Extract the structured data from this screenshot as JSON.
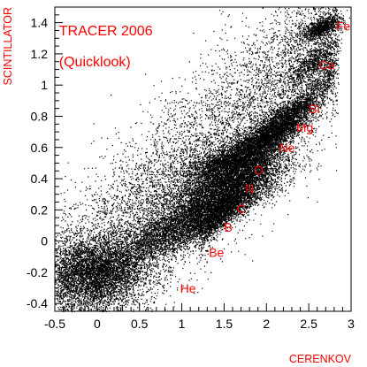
{
  "chart_data": {
    "type": "scatter",
    "title": "",
    "xlabel": "CERENKOV",
    "ylabel": "SCINTILLATOR",
    "xlim": [
      -0.5,
      3
    ],
    "ylim": [
      -0.45,
      1.5
    ],
    "x_ticks": [
      "-0.5",
      "0",
      "0.5",
      "1",
      "1.5",
      "2",
      "2.5",
      "3"
    ],
    "y_ticks": [
      "-0.4",
      "-0.2",
      "0",
      "0.2",
      "0.4",
      "0.6",
      "0.8",
      "1",
      "1.2",
      "1.4"
    ],
    "grid": false,
    "legend": "none",
    "point_color": "#000000",
    "label_color": "#ff0000",
    "annotations": [
      {
        "text": "TRACER 2006",
        "x": -0.45,
        "y": 1.32
      },
      {
        "text": "(Quicklook)",
        "x": -0.45,
        "y": 1.12
      },
      {
        "text": "Fe",
        "x": 2.82,
        "y": 1.35
      },
      {
        "text": "Ca",
        "x": 2.62,
        "y": 1.1
      },
      {
        "text": "Si",
        "x": 2.5,
        "y": 0.82
      },
      {
        "text": "Mg",
        "x": 2.35,
        "y": 0.7
      },
      {
        "text": "Ne",
        "x": 2.15,
        "y": 0.57
      },
      {
        "text": "O",
        "x": 1.85,
        "y": 0.43
      },
      {
        "text": "N",
        "x": 1.75,
        "y": 0.31
      },
      {
        "text": "C",
        "x": 1.65,
        "y": 0.18
      },
      {
        "text": "B",
        "x": 1.5,
        "y": 0.06
      },
      {
        "text": "Be",
        "x": 1.32,
        "y": -0.1
      },
      {
        "text": "He",
        "x": 0.98,
        "y": -0.33
      }
    ],
    "clusters": [
      {
        "element": "He",
        "x": -0.05,
        "y": -0.2
      },
      {
        "element": "Be",
        "x": 0.75,
        "y": 0.1
      },
      {
        "element": "B",
        "x": 1.3,
        "y": 0.1
      },
      {
        "element": "C",
        "x": 1.5,
        "y": 0.25
      },
      {
        "element": "N",
        "x": 1.6,
        "y": 0.38
      },
      {
        "element": "O",
        "x": 1.7,
        "y": 0.5
      },
      {
        "element": "Ne",
        "x": 1.95,
        "y": 0.62
      },
      {
        "element": "Mg",
        "x": 2.1,
        "y": 0.7
      },
      {
        "element": "Si",
        "x": 2.3,
        "y": 0.82
      },
      {
        "element": "Ca",
        "x": 2.6,
        "y": 1.15
      },
      {
        "element": "Fe",
        "x": 2.7,
        "y": 1.38
      }
    ]
  }
}
